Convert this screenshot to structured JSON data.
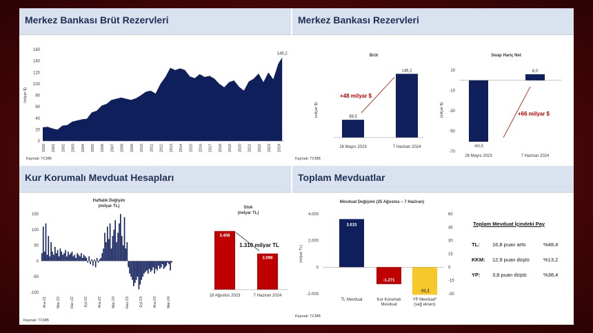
{
  "colors": {
    "navy": "#0e1f5b",
    "red": "#c00000",
    "yellow": "#f7c82a",
    "header_bg": "#d9e2ee",
    "arrow": "#c0392b",
    "background": "#5a0808"
  },
  "panels": {
    "p1": {
      "title": "Merkez Bankası Brüt Rezervleri"
    },
    "p2": {
      "title": "Merkez Bankası Rezervleri"
    },
    "p3": {
      "title": "Kur Korumalı Mevduat Hesapları"
    },
    "p4": {
      "title": "Toplam Mevduatlar"
    }
  },
  "notes": {
    "source": "Kaynak: TCMB"
  },
  "chart_data": [
    {
      "id": "gross_reserves",
      "type": "area",
      "ylabel": "(milyar $)",
      "ylim": [
        0,
        160
      ],
      "yticks": [
        0,
        20,
        40,
        60,
        80,
        100,
        120,
        140,
        160
      ],
      "x_tick_labels": [
        "2000",
        "2001",
        "2002",
        "2003",
        "2004",
        "2005",
        "2006",
        "2007",
        "2008",
        "2009",
        "2010",
        "2011",
        "2012",
        "2013",
        "2014",
        "2015",
        "2016",
        "2017",
        "2018",
        "2019",
        "2020",
        "2021",
        "2022",
        "2023",
        "2024"
      ],
      "x": [
        2000,
        2000.5,
        2001,
        2001.5,
        2002,
        2002.5,
        2003,
        2003.5,
        2004,
        2004.5,
        2005,
        2005.5,
        2006,
        2006.5,
        2007,
        2007.5,
        2008,
        2008.5,
        2009,
        2009.5,
        2010,
        2010.5,
        2011,
        2011.5,
        2012,
        2012.5,
        2013,
        2013.5,
        2014,
        2014.5,
        2015,
        2015.5,
        2016,
        2016.5,
        2017,
        2017.5,
        2018,
        2018.5,
        2019,
        2019.5,
        2020,
        2020.5,
        2021,
        2021.5,
        2022,
        2022.5,
        2023,
        2023.5,
        2024,
        2024.4
      ],
      "values": [
        24,
        25,
        22,
        20,
        27,
        28,
        34,
        36,
        38,
        39,
        50,
        53,
        62,
        65,
        72,
        74,
        76,
        74,
        72,
        75,
        80,
        86,
        88,
        83,
        100,
        112,
        128,
        124,
        127,
        124,
        113,
        110,
        117,
        112,
        114,
        109,
        100,
        94,
        103,
        106,
        95,
        88,
        104,
        109,
        118,
        103,
        120,
        108,
        135,
        146.2
      ],
      "annotations": [
        {
          "x": 2024.4,
          "y": 146.2,
          "text": "146,2"
        }
      ]
    },
    {
      "id": "reserves_gross",
      "type": "bar",
      "title": "Brüt",
      "ylabel": "(milyar $)",
      "categories": [
        "26 Mayıs 2023",
        "7 Haziran 2024"
      ],
      "values": [
        98.5,
        146.2
      ],
      "value_labels": [
        "98,5",
        "146,2"
      ],
      "ylim": [
        80,
        150
      ],
      "annotations": [
        {
          "text": "+48 milyar $"
        }
      ]
    },
    {
      "id": "reserves_swap_net",
      "type": "bar",
      "title": "Swap Hariç Net",
      "ylabel": "(milyar $)",
      "categories": [
        "26 Mayıs 2023",
        "7 Haziran 2024"
      ],
      "values": [
        -60.5,
        6.0
      ],
      "value_labels": [
        "-60,5",
        "6,0"
      ],
      "ylim": [
        -70,
        10
      ],
      "yticks": [
        10,
        -10,
        -30,
        -50,
        -70
      ],
      "annotations": [
        {
          "text": "+66 milyar $"
        }
      ]
    },
    {
      "id": "kkm_weekly",
      "type": "bar",
      "title": "Haftalık Değişim",
      "subtitle": "(milyar TL)",
      "ylim": [
        -100,
        150
      ],
      "yticks": [
        150,
        100,
        50,
        0,
        -50,
        -100
      ],
      "x_tick_labels": [
        "Ara-21",
        "Mar-22",
        "Haz-22",
        "Eyl-22",
        "Ara-22",
        "Mar-23",
        "Haz-23",
        "Eyl-23",
        "Ara-23",
        "Mar-24"
      ],
      "values": [
        25,
        110,
        30,
        120,
        20,
        80,
        15,
        60,
        30,
        20,
        45,
        25,
        35,
        15,
        40,
        30,
        20,
        25,
        35,
        15,
        30,
        20,
        25,
        30,
        15,
        20,
        10,
        25,
        20,
        15,
        25,
        10,
        20,
        15,
        10,
        -5,
        15,
        -10,
        5,
        -15,
        5,
        -20,
        10,
        -5,
        5,
        10,
        25,
        40,
        90,
        60,
        110,
        70,
        120,
        40,
        80,
        100,
        130,
        60,
        90,
        120,
        150,
        80,
        50,
        140,
        40,
        60,
        -20,
        -40,
        -50,
        -60,
        -80,
        -70,
        -60,
        -50,
        -90,
        -75,
        -60,
        -50,
        -40,
        -35,
        -30,
        -40,
        -25,
        -35,
        -30,
        -20,
        -40,
        -25,
        -30,
        -15,
        -25,
        -20,
        -10,
        -25,
        -20,
        -15,
        -5,
        -10,
        -30,
        -5
      ]
    },
    {
      "id": "kkm_stock",
      "type": "bar",
      "title": "Stok",
      "subtitle": "(milyar TL)",
      "categories": [
        "18 Ağustos 2023",
        "7 Haziran 2024"
      ],
      "values": [
        3408,
        2098
      ],
      "value_labels": [
        "3.408",
        "2.098"
      ],
      "ylim": [
        0,
        3600
      ],
      "annotations": [
        {
          "text": "1.310 milyar TL"
        }
      ]
    },
    {
      "id": "deposit_change",
      "type": "bar",
      "title": "Mevduat Değişimi (25 Ağustos – 7 Haziran)",
      "ylabel": "(milyar TL)",
      "categories": [
        "TL Mevduat",
        "Kur Korumalı Mevduat",
        "YP Mevduat* (sağ eksen)"
      ],
      "values": [
        3615,
        -1271,
        -31.1
      ],
      "value_labels": [
        "3.615",
        "-1.271",
        "-31,1"
      ],
      "ylim": [
        -2000,
        4000
      ],
      "yticks": [
        4000,
        2000,
        0,
        -2000
      ],
      "y2lim": [
        -30,
        60
      ],
      "y2ticks": [
        60,
        45,
        30,
        15,
        0,
        -15,
        -30
      ]
    }
  ],
  "deposit_shares": {
    "title": "Toplam Mevduat İçindeki Pay",
    "rows": [
      {
        "label": "TL:",
        "change": "16,8 puan arttı",
        "share": "%48,4"
      },
      {
        "label": "KKM:",
        "change": "12,9 puan düştü",
        "share": "%13,2"
      },
      {
        "label": "YP:",
        "change": "3,8 puan düştü",
        "share": "%38,4"
      }
    ]
  }
}
